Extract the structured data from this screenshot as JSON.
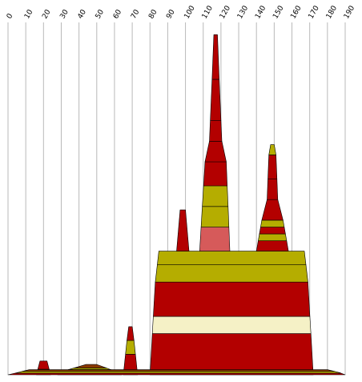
{
  "chart_data": {
    "type": "area",
    "title": "",
    "xlabel": "",
    "ylabel": "",
    "xlim": [
      0,
      190
    ],
    "ylim": [
      0,
      100
    ],
    "x_ticks": [
      "0",
      "10",
      "20",
      "30",
      "40",
      "50",
      "60",
      "70",
      "80",
      "90",
      "100",
      "110",
      "120",
      "130",
      "140",
      "150",
      "160",
      "170",
      "180",
      "190"
    ],
    "grid": true,
    "axis_labels_position": "top",
    "colors": {
      "red": "#b30000",
      "olive": "#b5ad00",
      "cream": "#f5f1c6",
      "salmon": "#d65a5a",
      "brown": "#8a3800",
      "outline": "#000000",
      "grid": "#b9b9b9",
      "background": "#ffffff"
    },
    "shapes": [
      {
        "name": "peak-20",
        "profile": [
          [
            16,
            0
          ],
          [
            18,
            4
          ],
          [
            22,
            4
          ],
          [
            24,
            0
          ]
        ],
        "bands": [
          [
            0,
            1,
            "red"
          ],
          [
            1,
            1.6,
            "olive"
          ],
          [
            1.6,
            4,
            "red"
          ]
        ]
      },
      {
        "name": "peak-47",
        "profile": [
          [
            28,
            0
          ],
          [
            34,
            1.5
          ],
          [
            44,
            3
          ],
          [
            50,
            3
          ],
          [
            58,
            1.5
          ],
          [
            64,
            0
          ]
        ],
        "bands": [
          [
            0,
            0.5,
            "brown"
          ],
          [
            0.5,
            1,
            "olive"
          ],
          [
            1,
            1.5,
            "brown"
          ],
          [
            1.5,
            2,
            "olive"
          ],
          [
            2,
            3,
            "brown"
          ]
        ]
      },
      {
        "name": "peak-70",
        "profile": [
          [
            65,
            0
          ],
          [
            67,
            10
          ],
          [
            68,
            14
          ],
          [
            70,
            14
          ],
          [
            71,
            10
          ],
          [
            73,
            0
          ]
        ],
        "bands": [
          [
            0,
            6,
            "red"
          ],
          [
            6,
            10,
            "olive"
          ],
          [
            10,
            14,
            "red"
          ]
        ]
      },
      {
        "name": "main-block",
        "profile": [
          [
            80,
            0
          ],
          [
            83,
            27
          ],
          [
            85,
            36
          ],
          [
            167,
            36
          ],
          [
            169,
            27
          ],
          [
            172,
            0
          ]
        ],
        "bands": [
          [
            0,
            12,
            "red"
          ],
          [
            12,
            17,
            "cream"
          ],
          [
            17,
            27,
            "red"
          ],
          [
            27,
            32,
            "olive"
          ],
          [
            32,
            36,
            "olive"
          ]
        ]
      },
      {
        "name": "peak-100",
        "profile": [
          [
            95,
            36
          ],
          [
            97,
            48
          ],
          [
            100,
            48
          ],
          [
            102,
            36
          ]
        ],
        "bands": [
          [
            36,
            48,
            "red"
          ]
        ]
      },
      {
        "name": "peak-120",
        "profile": [
          [
            108,
            36
          ],
          [
            111,
            62
          ],
          [
            113,
            62
          ],
          [
            115,
            86
          ],
          [
            116,
            99
          ],
          [
            118,
            99
          ],
          [
            119,
            86
          ],
          [
            121,
            62
          ],
          [
            123,
            62
          ],
          [
            125,
            36
          ]
        ],
        "bands": [
          [
            36,
            43,
            "salmon"
          ],
          [
            43,
            49,
            "olive"
          ],
          [
            49,
            55,
            "olive"
          ],
          [
            55,
            62,
            "red"
          ],
          [
            62,
            68,
            "red"
          ],
          [
            68,
            74,
            "red"
          ],
          [
            74,
            86,
            "red"
          ],
          [
            86,
            99,
            "red"
          ]
        ]
      },
      {
        "name": "peak-150",
        "profile": [
          [
            140,
            36
          ],
          [
            143,
            45
          ],
          [
            146,
            51
          ],
          [
            147,
            64
          ],
          [
            148,
            67
          ],
          [
            150,
            67
          ],
          [
            151,
            64
          ],
          [
            152,
            51
          ],
          [
            155,
            45
          ],
          [
            158,
            36
          ]
        ],
        "bands": [
          [
            36,
            39,
            "red"
          ],
          [
            39,
            41,
            "olive"
          ],
          [
            41,
            43,
            "red"
          ],
          [
            43,
            45,
            "olive"
          ],
          [
            45,
            51,
            "red"
          ],
          [
            51,
            57,
            "red"
          ],
          [
            57,
            64,
            "red"
          ],
          [
            64,
            67,
            "olive"
          ]
        ]
      },
      {
        "name": "baseline-strip",
        "profile": [
          [
            0,
            0
          ],
          [
            5,
            0.6
          ],
          [
            12,
            1.5
          ],
          [
            180,
            1.5
          ],
          [
            187,
            0.6
          ],
          [
            190,
            0
          ]
        ],
        "bands": [
          [
            0,
            0.5,
            "red"
          ],
          [
            0.5,
            1,
            "olive"
          ],
          [
            1,
            1.5,
            "brown"
          ]
        ]
      }
    ]
  }
}
